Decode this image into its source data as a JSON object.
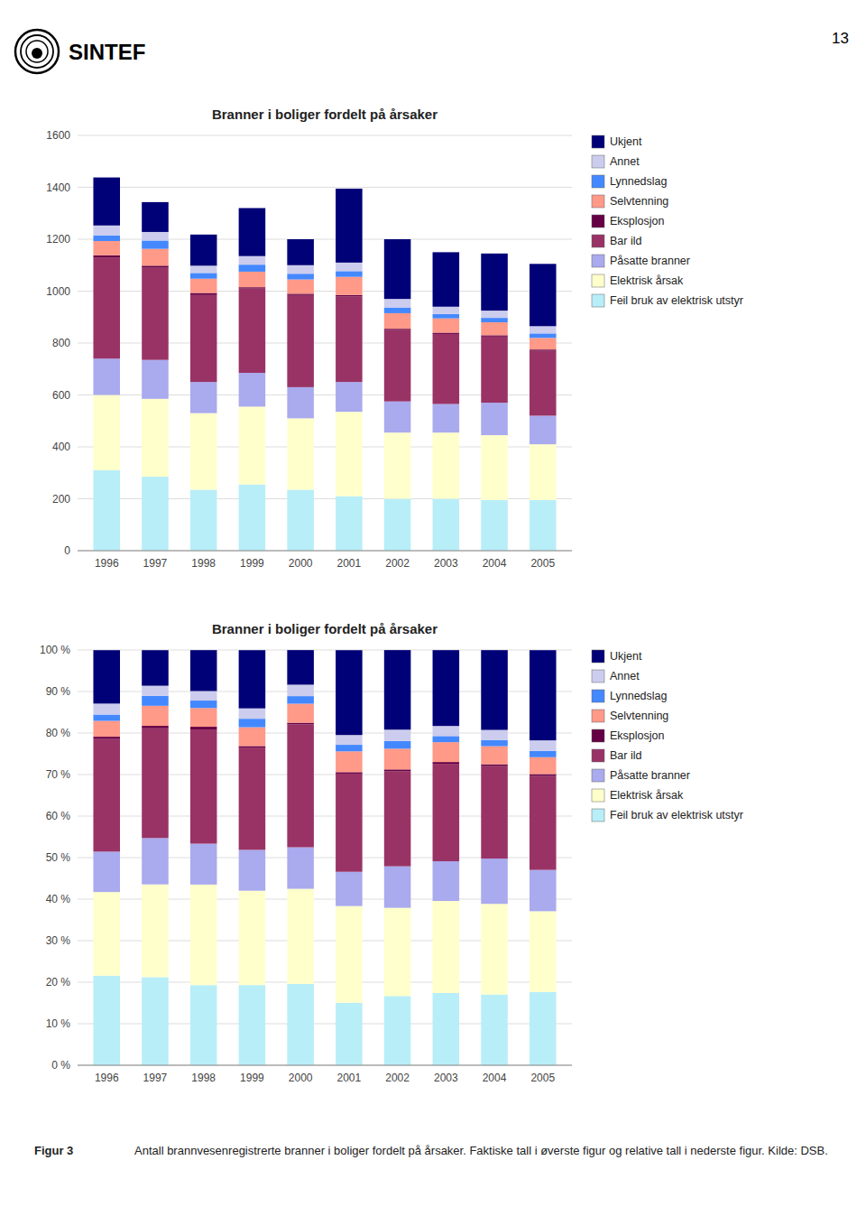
{
  "header": "SINTEF",
  "page_number": "13",
  "caption_label": "Figur 3",
  "caption": "Antall brannvesenregistrerte branner i boliger fordelt på årsaker. Faktiske tall i øverste figur og relative tall i nederste figur. Kilde: DSB.",
  "chart_data": [
    {
      "type": "bar",
      "stacked": true,
      "grid": true,
      "legend": "right",
      "title": "Branner i boliger fordelt på årsaker",
      "categories": [
        "1996",
        "1997",
        "1998",
        "1999",
        "2000",
        "2001",
        "2002",
        "2003",
        "2004",
        "2005"
      ],
      "series": [
        {
          "name": "Feil bruk av elektrisk utstyr",
          "color": "#b8eef8",
          "values": [
            310,
            285,
            235,
            255,
            235,
            210,
            200,
            200,
            195,
            195
          ]
        },
        {
          "name": "Elektrisk årsak",
          "color": "#ffffcc",
          "values": [
            290,
            300,
            295,
            300,
            275,
            325,
            255,
            255,
            250,
            215
          ]
        },
        {
          "name": "Påsatte branner",
          "color": "#aaaaee",
          "values": [
            140,
            150,
            120,
            130,
            120,
            115,
            120,
            110,
            125,
            110
          ]
        },
        {
          "name": "Bar ild",
          "color": "#993366",
          "values": [
            390,
            355,
            335,
            325,
            355,
            330,
            275,
            270,
            255,
            250
          ]
        },
        {
          "name": "Eksplosjon",
          "color": "#660044",
          "values": [
            8,
            8,
            8,
            5,
            5,
            5,
            5,
            5,
            5,
            5
          ]
        },
        {
          "name": "Selvtenning",
          "color": "#ff9988",
          "values": [
            55,
            65,
            55,
            60,
            55,
            70,
            60,
            55,
            50,
            45
          ]
        },
        {
          "name": "Lynnedslag",
          "color": "#4488ff",
          "values": [
            22,
            32,
            22,
            27,
            22,
            22,
            22,
            17,
            17,
            17
          ]
        },
        {
          "name": "Annet",
          "color": "#ccccee",
          "values": [
            38,
            33,
            28,
            33,
            33,
            33,
            33,
            28,
            28,
            28
          ]
        },
        {
          "name": "Ukjent",
          "color": "#000077",
          "values": [
            185,
            115,
            120,
            185,
            100,
            285,
            230,
            210,
            220,
            240
          ]
        }
      ],
      "ylim": [
        0,
        1600
      ],
      "yticks": [
        0,
        200,
        400,
        600,
        800,
        1000,
        1200,
        1400,
        1600
      ]
    },
    {
      "type": "bar",
      "stacked": true,
      "grid": true,
      "legend": "right",
      "title": "Branner i boliger fordelt på årsaker",
      "categories": [
        "1996",
        "1997",
        "1998",
        "1999",
        "2000",
        "2001",
        "2002",
        "2003",
        "2004",
        "2005"
      ],
      "series": [
        {
          "name": "Feil bruk av elektrisk utstyr",
          "color": "#b8eef8",
          "values": [
            21.55,
            21.22,
            19.29,
            19.31,
            19.58,
            15.05,
            16.66,
            17.39,
            17.03,
            17.64
          ]
        },
        {
          "name": "Elektrisk årsak",
          "color": "#ffffcc",
          "values": [
            20.16,
            22.33,
            24.22,
            22.72,
            22.91,
            23.29,
            21.25,
            22.17,
            21.83,
            19.45
          ]
        },
        {
          "name": "Påsatte branner",
          "color": "#aaaaee",
          "values": [
            9.73,
            11.16,
            9.85,
            9.84,
            10,
            8.24,
            10,
            9.56,
            10.91,
            9.95
          ]
        },
        {
          "name": "Bar ild",
          "color": "#993366",
          "values": [
            27.12,
            26.43,
            27.5,
            24.62,
            29.58,
            23.65,
            22.91,
            23.47,
            22.27,
            22.62
          ]
        },
        {
          "name": "Eksplosjon",
          "color": "#660044",
          "values": [
            0.55,
            0.59,
            0.65,
            0.37,
            0.41,
            0.35,
            0.41,
            0.43,
            0.43,
            0.45
          ]
        },
        {
          "name": "Selvtenning",
          "color": "#ff9988",
          "values": [
            3.82,
            4.83,
            4.51,
            4.54,
            4.58,
            5.01,
            5,
            4.78,
            4.36,
            4.07
          ]
        },
        {
          "name": "Lynnedslag",
          "color": "#4488ff",
          "values": [
            1.52,
            2.38,
            1.8,
            2.04,
            1.83,
            1.57,
            1.83,
            1.47,
            1.48,
            1.53
          ]
        },
        {
          "name": "Annet",
          "color": "#ccccee",
          "values": [
            2.64,
            2.45,
            2.29,
            2.5,
            2.75,
            2.36,
            2.75,
            2.43,
            2.44,
            2.53
          ]
        },
        {
          "name": "Ukjent",
          "color": "#000077",
          "values": [
            12.86,
            8.56,
            9.85,
            14.01,
            8.33,
            20.43,
            19.16,
            18.26,
            19.21,
            21.71
          ]
        }
      ],
      "ylim": [
        0,
        100
      ],
      "yticks": [
        {
          "value": 0,
          "label": "0 %"
        },
        {
          "value": 10,
          "label": "10 %"
        },
        {
          "value": 20,
          "label": "20 %"
        },
        {
          "value": 30,
          "label": "30 %"
        },
        {
          "value": 40,
          "label": "40 %"
        },
        {
          "value": 50,
          "label": "50 %"
        },
        {
          "value": 60,
          "label": "60 %"
        },
        {
          "value": 70,
          "label": "70 %"
        },
        {
          "value": 80,
          "label": "80 %"
        },
        {
          "value": 90,
          "label": "90 %"
        },
        {
          "value": 100,
          "label": "100 %"
        }
      ]
    }
  ]
}
